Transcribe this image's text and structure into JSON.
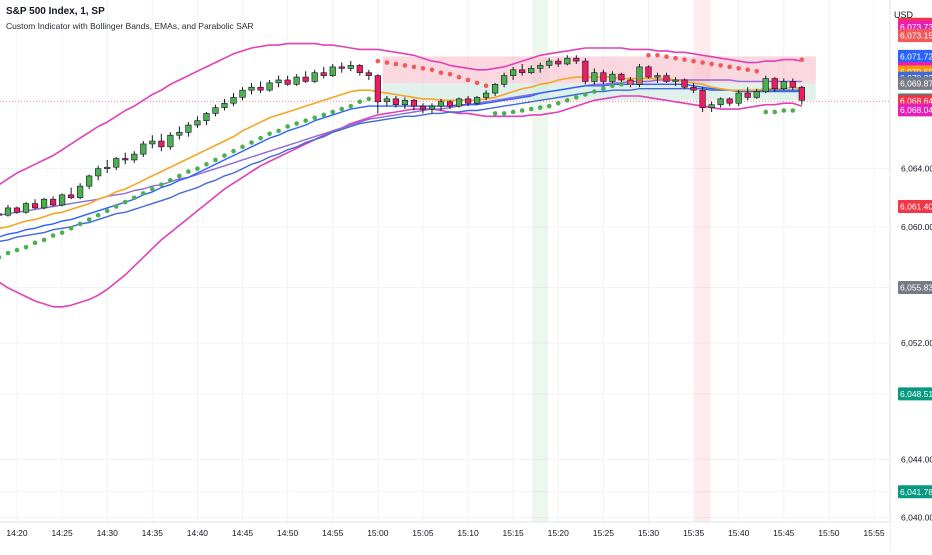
{
  "header": {
    "symbol_line": "S&P 500 Index, 1, SP",
    "indicator_line": "Custom Indicator with Bollinger Bands, EMAs, and Parabolic SAR",
    "currency": "USD"
  },
  "chart_data": {
    "type": "candlestick",
    "title": "S&P 500 Index, 1, SP",
    "subtitle": "Custom Indicator with Bollinger Bands, EMAs, and Parabolic SAR",
    "x_ticks": [
      "14:20",
      "14:25",
      "14:30",
      "14:35",
      "14:40",
      "14:45",
      "14:50",
      "14:55",
      "15:00",
      "15:05",
      "15:10",
      "15:15",
      "15:20",
      "15:25",
      "15:30",
      "15:35",
      "15:40",
      "15:45",
      "15:50",
      "15:55"
    ],
    "y_ticks": [
      "6,064.00",
      "6,060.00",
      "6,055.83",
      "6,052.00",
      "6,048.51",
      "6,044.00",
      "6,041.78",
      "6,040.00"
    ],
    "y_range": [
      6039.7,
      6075.6
    ],
    "grid": true,
    "colors": {
      "up": "#4caf50",
      "down": "#e91e63",
      "wick": "#131722",
      "bb": "#e040b9",
      "ema_fast": "#f5a623",
      "ema_mid": "#2962ff",
      "ema_slow": "#3f6ad8",
      "ema_long": "#8e6bd6",
      "sar_bull": "#4caf50",
      "sar_bear": "#f05a5a",
      "bg_buy": "#4caf50",
      "bg_sell": "#f23645"
    },
    "start_time": "14:16",
    "candles": [
      [
        6060.2,
        6060.9,
        6059.8,
        6060.6
      ],
      [
        6060.6,
        6061.1,
        6060.3,
        6060.9
      ],
      [
        6060.9,
        6061.2,
        6060.7,
        6060.8
      ],
      [
        6060.8,
        6061.5,
        6060.7,
        6061.3
      ],
      [
        6061.3,
        6061.4,
        6060.9,
        6061.0
      ],
      [
        6061.0,
        6061.7,
        6060.9,
        6061.6
      ],
      [
        6061.6,
        6061.9,
        6061.2,
        6061.3
      ],
      [
        6061.3,
        6062.0,
        6061.2,
        6061.9
      ],
      [
        6061.9,
        6062.1,
        6061.4,
        6061.5
      ],
      [
        6061.5,
        6062.3,
        6061.4,
        6062.2
      ],
      [
        6062.2,
        6062.7,
        6061.9,
        6062.0
      ],
      [
        6062.0,
        6063.0,
        6061.9,
        6062.8
      ],
      [
        6062.8,
        6063.6,
        6062.6,
        6063.5
      ],
      [
        6063.5,
        6064.2,
        6063.2,
        6064.0
      ],
      [
        6064.0,
        6064.6,
        6063.7,
        6064.1
      ],
      [
        6064.1,
        6064.8,
        6063.9,
        6064.7
      ],
      [
        6064.7,
        6065.1,
        6064.3,
        6064.6
      ],
      [
        6064.6,
        6065.2,
        6064.4,
        6065.0
      ],
      [
        6065.0,
        6065.9,
        6064.8,
        6065.7
      ],
      [
        6065.7,
        6066.3,
        6065.4,
        6065.9
      ],
      [
        6065.9,
        6066.4,
        6065.2,
        6065.5
      ],
      [
        6065.5,
        6066.5,
        6065.3,
        6066.3
      ],
      [
        6066.3,
        6066.9,
        6066.0,
        6066.5
      ],
      [
        6066.5,
        6067.2,
        6066.2,
        6067.0
      ],
      [
        6067.0,
        6067.6,
        6066.8,
        6067.3
      ],
      [
        6067.3,
        6067.9,
        6067.0,
        6067.8
      ],
      [
        6067.8,
        6068.4,
        6067.6,
        6068.2
      ],
      [
        6068.2,
        6068.8,
        6068.0,
        6068.5
      ],
      [
        6068.5,
        6069.2,
        6068.3,
        6068.9
      ],
      [
        6068.9,
        6069.6,
        6068.7,
        6069.4
      ],
      [
        6069.4,
        6069.9,
        6069.1,
        6069.6
      ],
      [
        6069.6,
        6070.0,
        6069.2,
        6069.4
      ],
      [
        6069.4,
        6070.1,
        6069.3,
        6069.9
      ],
      [
        6069.9,
        6070.4,
        6069.6,
        6070.1
      ],
      [
        6070.1,
        6070.4,
        6069.7,
        6069.8
      ],
      [
        6069.8,
        6070.5,
        6069.7,
        6070.3
      ],
      [
        6070.3,
        6070.7,
        6069.9,
        6070.0
      ],
      [
        6070.0,
        6070.8,
        6069.9,
        6070.6
      ],
      [
        6070.6,
        6071.0,
        6070.2,
        6070.4
      ],
      [
        6070.4,
        6071.2,
        6070.3,
        6071.0
      ],
      [
        6071.0,
        6071.3,
        6070.6,
        6070.9
      ],
      [
        6070.9,
        6071.4,
        6070.7,
        6071.1
      ],
      [
        6071.1,
        6071.2,
        6070.4,
        6070.6
      ],
      [
        6070.6,
        6070.8,
        6070.1,
        6070.4
      ],
      [
        6070.4,
        6070.5,
        6067.8,
        6068.6
      ],
      [
        6068.6,
        6069.0,
        6068.3,
        6068.8
      ],
      [
        6068.8,
        6069.0,
        6068.2,
        6068.4
      ],
      [
        6068.4,
        6068.9,
        6068.1,
        6068.7
      ],
      [
        6068.7,
        6068.8,
        6068.0,
        6068.3
      ],
      [
        6068.3,
        6068.5,
        6067.8,
        6068.1
      ],
      [
        6068.1,
        6068.5,
        6067.8,
        6068.3
      ],
      [
        6068.3,
        6068.8,
        6068.0,
        6068.6
      ],
      [
        6068.6,
        6068.7,
        6068.1,
        6068.3
      ],
      [
        6068.3,
        6068.9,
        6068.2,
        6068.8
      ],
      [
        6068.8,
        6069.0,
        6068.3,
        6068.5
      ],
      [
        6068.5,
        6069.0,
        6068.4,
        6068.9
      ],
      [
        6068.9,
        6069.4,
        6068.7,
        6069.2
      ],
      [
        6069.2,
        6069.9,
        6069.0,
        6069.8
      ],
      [
        6069.8,
        6070.6,
        6069.6,
        6070.4
      ],
      [
        6070.4,
        6071.0,
        6070.1,
        6070.8
      ],
      [
        6070.8,
        6071.2,
        6070.4,
        6070.6
      ],
      [
        6070.6,
        6071.1,
        6070.5,
        6070.9
      ],
      [
        6070.9,
        6071.3,
        6070.6,
        6071.1
      ],
      [
        6071.1,
        6071.6,
        6070.9,
        6071.4
      ],
      [
        6071.4,
        6071.6,
        6071.0,
        6071.2
      ],
      [
        6071.2,
        6071.8,
        6071.1,
        6071.6
      ],
      [
        6071.6,
        6071.8,
        6071.2,
        6071.4
      ],
      [
        6071.4,
        6071.6,
        6069.8,
        6070.0
      ],
      [
        6070.0,
        6070.9,
        6069.8,
        6070.6
      ],
      [
        6070.6,
        6070.8,
        6069.8,
        6070.0
      ],
      [
        6070.0,
        6070.7,
        6069.9,
        6070.5
      ],
      [
        6070.5,
        6070.6,
        6069.9,
        6070.1
      ],
      [
        6070.1,
        6070.3,
        6069.6,
        6069.8
      ],
      [
        6069.8,
        6071.2,
        6069.6,
        6071.0
      ],
      [
        6071.0,
        6071.1,
        6070.2,
        6070.3
      ],
      [
        6070.3,
        6070.6,
        6069.9,
        6070.4
      ],
      [
        6070.4,
        6070.6,
        6069.9,
        6070.0
      ],
      [
        6070.0,
        6070.3,
        6069.7,
        6070.1
      ],
      [
        6070.1,
        6070.2,
        6069.5,
        6069.6
      ],
      [
        6069.6,
        6069.9,
        6069.2,
        6069.4
      ],
      [
        6069.4,
        6069.6,
        6067.9,
        6068.2
      ],
      [
        6068.2,
        6068.6,
        6067.9,
        6068.4
      ],
      [
        6068.4,
        6068.9,
        6068.2,
        6068.8
      ],
      [
        6068.8,
        6068.9,
        6068.3,
        6068.5
      ],
      [
        6068.5,
        6069.4,
        6068.3,
        6069.2
      ],
      [
        6069.2,
        6069.6,
        6068.7,
        6068.9
      ],
      [
        6068.9,
        6069.5,
        6068.8,
        6069.3
      ],
      [
        6069.3,
        6070.4,
        6069.2,
        6070.2
      ],
      [
        6070.2,
        6070.3,
        6069.3,
        6069.5
      ],
      [
        6069.5,
        6070.2,
        6069.4,
        6070.0
      ],
      [
        6070.0,
        6070.2,
        6069.4,
        6069.6
      ],
      [
        6069.6,
        6069.7,
        6068.4,
        6068.7
      ]
    ],
    "bb_upper": [
      6062.4,
      6062.6,
      6062.9,
      6063.3,
      6063.7,
      6064.0,
      6064.3,
      6064.6,
      6064.9,
      6065.3,
      6065.7,
      6066.1,
      6066.5,
      6066.9,
      6067.2,
      6067.6,
      6068.0,
      6068.3,
      6068.7,
      6069.1,
      6069.4,
      6069.8,
      6070.1,
      6070.4,
      6070.7,
      6071.0,
      6071.3,
      6071.6,
      6071.9,
      6072.1,
      6072.3,
      6072.4,
      6072.5,
      6072.5,
      6072.6,
      6072.6,
      6072.6,
      6072.6,
      6072.5,
      6072.5,
      6072.4,
      6072.3,
      6072.2,
      6072.2,
      6072.2,
      6072.1,
      6072.0,
      6071.9,
      6071.8,
      6071.6,
      6071.4,
      6071.3,
      6071.1,
      6071.0,
      6070.9,
      6070.8,
      6070.8,
      6070.9,
      6071.0,
      6071.2,
      6071.4,
      6071.6,
      6071.8,
      6071.9,
      6072.0,
      6072.1,
      6072.2,
      6072.3,
      6072.3,
      6072.3,
      6072.3,
      6072.3,
      6072.2,
      6072.2,
      6072.2,
      6072.1,
      6072.1,
      6072.0,
      6072.0,
      6071.9,
      6071.8,
      6071.7,
      6071.6,
      6071.5,
      6071.4,
      6071.3,
      6071.3,
      6071.4,
      6071.4,
      6071.5,
      6071.5,
      6071.4
    ],
    "bb_lower": [
      6056.8,
      6056.6,
      6056.2,
      6055.8,
      6055.5,
      6055.2,
      6054.9,
      6054.7,
      6054.5,
      6054.5,
      6054.6,
      6054.8,
      6055.0,
      6055.3,
      6055.7,
      6056.2,
      6056.7,
      6057.3,
      6057.9,
      6058.5,
      6059.1,
      6059.6,
      6060.1,
      6060.6,
      6061.1,
      6061.6,
      6062.1,
      6062.6,
      6063.0,
      6063.4,
      6063.8,
      6064.2,
      6064.5,
      6064.8,
      6065.1,
      6065.4,
      6065.7,
      6066.0,
      6066.3,
      6066.6,
      6066.8,
      6067.1,
      6067.3,
      6067.5,
      6067.7,
      6067.8,
      6067.9,
      6068.0,
      6068.1,
      6068.1,
      6068.1,
      6068.0,
      6067.9,
      6067.8,
      6067.8,
      6067.7,
      6067.6,
      6067.6,
      6067.6,
      6067.6,
      6067.6,
      6067.7,
      6067.7,
      6067.8,
      6067.9,
      6068.1,
      6068.3,
      6068.5,
      6068.7,
      6068.8,
      6068.9,
      6069.0,
      6069.0,
      6069.0,
      6068.9,
      6068.8,
      6068.7,
      6068.6,
      6068.5,
      6068.4,
      6068.3,
      6068.2,
      6068.1,
      6068.1,
      6068.1,
      6068.2,
      6068.3,
      6068.4,
      6068.4,
      6068.5,
      6068.5,
      6068.3
    ],
    "ema_fast": [
      6059.5,
      6059.7,
      6059.9,
      6060.0,
      6060.2,
      6060.4,
      6060.5,
      6060.7,
      6060.9,
      6061.0,
      6061.2,
      6061.4,
      6061.6,
      6061.9,
      6062.1,
      6062.4,
      6062.6,
      6062.9,
      6063.2,
      6063.5,
      6063.8,
      6064.1,
      6064.4,
      6064.7,
      6065.0,
      6065.3,
      6065.6,
      6065.9,
      6066.2,
      6066.6,
      6066.9,
      6067.2,
      6067.5,
      6067.7,
      6067.9,
      6068.1,
      6068.3,
      6068.5,
      6068.7,
      6068.9,
      6069.1,
      6069.3,
      6069.4,
      6069.4,
      6069.3,
      6069.2,
      6069.1,
      6069.0,
      6068.9,
      6068.8,
      6068.8,
      6068.7,
      6068.7,
      6068.7,
      6068.7,
      6068.7,
      6068.8,
      6068.9,
      6069.1,
      6069.3,
      6069.5,
      6069.6,
      6069.8,
      6069.9,
      6070.1,
      6070.2,
      6070.3,
      6070.3,
      6070.3,
      6070.3,
      6070.3,
      6070.2,
      6070.2,
      6070.2,
      6070.2,
      6070.2,
      6070.2,
      6070.1,
      6070.0,
      6069.9,
      6069.8,
      6069.6,
      6069.5,
      6069.4,
      6069.4,
      6069.4,
      6069.4,
      6069.5,
      6069.5,
      6069.5,
      6069.6,
      6069.5
    ],
    "ema_mid": [
      6059.0,
      6059.2,
      6059.3,
      6059.5,
      6059.6,
      6059.8,
      6059.9,
      6060.1,
      6060.2,
      6060.4,
      6060.5,
      6060.7,
      6060.9,
      6061.1,
      6061.3,
      6061.5,
      6061.7,
      6061.9,
      6062.2,
      6062.4,
      6062.7,
      6062.9,
      6063.2,
      6063.4,
      6063.7,
      6064.0,
      6064.3,
      6064.6,
      6064.9,
      6065.2,
      6065.5,
      6065.8,
      6066.1,
      6066.3,
      6066.6,
      6066.8,
      6067.0,
      6067.3,
      6067.5,
      6067.7,
      6067.9,
      6068.1,
      6068.2,
      6068.3,
      6068.3,
      6068.3,
      6068.3,
      6068.3,
      6068.3,
      6068.3,
      6068.3,
      6068.3,
      6068.3,
      6068.4,
      6068.4,
      6068.4,
      6068.5,
      6068.6,
      6068.7,
      6068.8,
      6068.9,
      6069.0,
      6069.2,
      6069.3,
      6069.4,
      6069.5,
      6069.6,
      6069.7,
      6069.7,
      6069.7,
      6069.8,
      6069.8,
      6069.8,
      6069.8,
      6069.8,
      6069.8,
      6069.8,
      6069.8,
      6069.8,
      6069.7,
      6069.6,
      6069.5,
      6069.5,
      6069.4,
      6069.4,
      6069.4,
      6069.4,
      6069.4,
      6069.4,
      6069.4,
      6069.4,
      6069.4
    ],
    "ema_slow": [
      6058.7,
      6058.9,
      6059.0,
      6059.1,
      6059.3,
      6059.4,
      6059.5,
      6059.6,
      6059.8,
      6059.9,
      6060.0,
      6060.2,
      6060.3,
      6060.5,
      6060.7,
      6060.9,
      6061.0,
      6061.2,
      6061.4,
      6061.6,
      6061.8,
      6062.0,
      6062.3,
      6062.5,
      6062.7,
      6063.0,
      6063.2,
      6063.5,
      6063.7,
      6064.0,
      6064.3,
      6064.5,
      6064.8,
      6065.0,
      6065.3,
      6065.5,
      6065.8,
      6066.0,
      6066.2,
      6066.5,
      6066.7,
      6066.9,
      6067.1,
      6067.2,
      6067.3,
      6067.4,
      6067.5,
      6067.6,
      6067.6,
      6067.7,
      6067.8,
      6067.8,
      6067.9,
      6067.9,
      6068.0,
      6068.0,
      6068.1,
      6068.2,
      6068.3,
      6068.4,
      6068.5,
      6068.6,
      6068.7,
      6068.8,
      6068.9,
      6069.0,
      6069.1,
      6069.2,
      6069.3,
      6069.3,
      6069.4,
      6069.4,
      6069.4,
      6069.5,
      6069.5,
      6069.5,
      6069.5,
      6069.5,
      6069.5,
      6069.5,
      6069.5,
      6069.4,
      6069.4,
      6069.4,
      6069.3,
      6069.3,
      6069.3,
      6069.3,
      6069.3,
      6069.3,
      6069.3,
      6069.3
    ],
    "ema_long": [
      6060.6,
      6060.7,
      6060.8,
      6060.9,
      6061.0,
      6061.1,
      6061.2,
      6061.3,
      6061.4,
      6061.5,
      6061.6,
      6061.7,
      6061.8,
      6061.9,
      6062.1,
      6062.2,
      6062.3,
      6062.5,
      6062.6,
      6062.8,
      6062.9,
      6063.1,
      6063.3,
      6063.4,
      6063.6,
      6063.8,
      6064.0,
      6064.2,
      6064.4,
      6064.6,
      6064.8,
      6065.0,
      6065.2,
      6065.4,
      6065.6,
      6065.8,
      6066.0,
      6066.2,
      6066.4,
      6066.6,
      6066.8,
      6067.0,
      6067.2,
      6067.4,
      6067.5,
      6067.6,
      6067.7,
      6067.8,
      6067.9,
      6068.0,
      6068.1,
      6068.1,
      6068.2,
      6068.3,
      6068.4,
      6068.5,
      6068.6,
      6068.7,
      6068.8,
      6068.9,
      6069.0,
      6069.1,
      6069.2,
      6069.3,
      6069.4,
      6069.5,
      6069.6,
      6069.7,
      6069.8,
      6069.8,
      6069.9,
      6069.9,
      6070.0,
      6070.0,
      6070.0,
      6070.1,
      6070.1,
      6070.1,
      6070.1,
      6070.1,
      6070.1,
      6070.1,
      6070.1,
      6070.1,
      6070.0,
      6070.0,
      6070.0,
      6070.0,
      6070.0,
      6070.0,
      6070.0,
      6070.0
    ],
    "sar": [
      6057.5,
      6057.7,
      6057.9,
      6058.2,
      6058.4,
      6058.6,
      6058.9,
      6059.1,
      6059.4,
      6059.6,
      6059.9,
      6060.2,
      6060.5,
      6060.8,
      6061.1,
      6061.4,
      6061.7,
      6062.0,
      6062.3,
      6062.6,
      6062.9,
      6063.2,
      6063.5,
      6063.8,
      6064.0,
      6064.3,
      6064.6,
      6064.9,
      6065.2,
      6065.5,
      6065.8,
      6066.1,
      6066.4,
      6066.6,
      6066.9,
      6067.1,
      6067.3,
      6067.5,
      6067.7,
      6067.9,
      6068.1,
      6068.3,
      6068.6,
      6068.8,
      6071.4,
      6071.3,
      6071.2,
      6071.1,
      6071.0,
      6070.9,
      6070.8,
      6070.6,
      6070.5,
      6070.3,
      6070.1,
      6069.9,
      6069.7,
      6067.8,
      6067.8,
      6067.9,
      6068.0,
      6068.1,
      6068.2,
      6068.3,
      6068.5,
      6068.7,
      6068.9,
      6069.1,
      6069.3,
      6069.5,
      6069.7,
      6069.8,
      6069.9,
      6070.0,
      6071.8,
      6071.8,
      6071.7,
      6071.6,
      6071.5,
      6071.4,
      6071.3,
      6071.2,
      6071.1,
      6071.0,
      6070.9,
      6070.8,
      6070.7,
      6067.9,
      6067.9,
      6068.0,
      6068.0,
      6071.5
    ],
    "price_labels": [
      {
        "text": "6,073.93",
        "value": 6073.93,
        "color": "#f23645"
      },
      {
        "text": "6,073.73",
        "value": 6073.73,
        "color": "#e91eb9"
      },
      {
        "text": "6,073.15",
        "value": 6073.15,
        "color": "#f05a5a"
      },
      {
        "text": "6,071.72",
        "value": 6071.72,
        "color": "#2962ff"
      },
      {
        "text": "6,070.90",
        "value": 6070.9,
        "color": "#2962ff"
      },
      {
        "text": "6,070.89",
        "value": 6070.89,
        "color": "#e91eb9"
      },
      {
        "text": "6,070.65",
        "value": 6070.65,
        "color": "#ff9800"
      },
      {
        "text": "6,070.23",
        "value": 6070.23,
        "color": "#3f6ad8"
      },
      {
        "text": "6,069.87",
        "value": 6069.87,
        "color": "#787b86"
      },
      {
        "text": "6,068.72",
        "value": 6068.72,
        "color": "#089981"
      },
      {
        "text": "6,068.64",
        "value": 6068.64,
        "color": "#f23645"
      },
      {
        "text": "6,068.04",
        "value": 6068.04,
        "color": "#e91eb9"
      },
      {
        "text": "6,061.40",
        "value": 6061.4,
        "color": "#f23645"
      },
      {
        "text": "6,055.83",
        "value": 6055.83,
        "color": "#787b86"
      },
      {
        "text": "6,048.51",
        "value": 6048.51,
        "color": "#089981"
      },
      {
        "text": "6,041.78",
        "value": 6041.78,
        "color": "#089981"
      }
    ],
    "zones": [
      {
        "from": 6069.87,
        "to": 6071.72,
        "color": "#f7b6c4"
      },
      {
        "from": 6068.72,
        "to": 6069.87,
        "color": "#c6e6dc"
      }
    ],
    "signal_bars": [
      {
        "time": "15:18",
        "color": "#4caf50"
      },
      {
        "time": "15:36",
        "color": "#f23645"
      }
    ]
  }
}
